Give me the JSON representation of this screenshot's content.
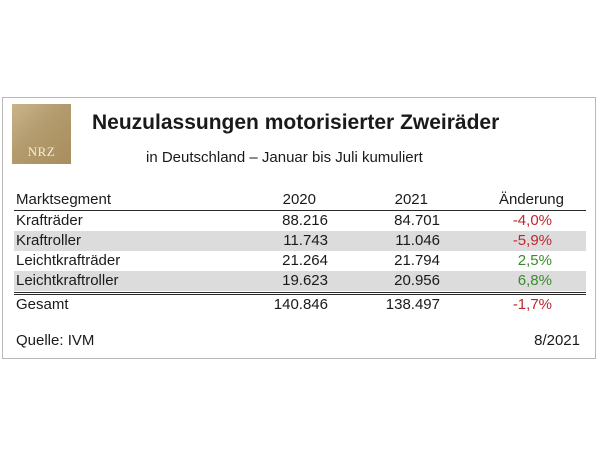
{
  "logo": {
    "text": "NRZ"
  },
  "title": "Neuzulassungen motorisierter Zweiräder",
  "subtitle": "in Deutschland – Januar bis Juli kumuliert",
  "table": {
    "headers": [
      "Marktsegment",
      "2020",
      "2021",
      "Änderung"
    ],
    "rows": [
      {
        "segment": "Krafträder",
        "y2020": "88.216",
        "y2021": "84.701",
        "change": "-4,0%",
        "trend": "negative"
      },
      {
        "segment": "Kraftroller",
        "y2020": "11.743",
        "y2021": "11.046",
        "change": "-5,9%",
        "trend": "negative"
      },
      {
        "segment": "Leichtkrafträder",
        "y2020": "21.264",
        "y2021": "21.794",
        "change": "2,5%",
        "trend": "positive"
      },
      {
        "segment": "Leichtkraftroller",
        "y2020": "19.623",
        "y2021": "20.956",
        "change": "6,8%",
        "trend": "positive"
      }
    ],
    "total": {
      "segment": "Gesamt",
      "y2020": "140.846",
      "y2021": "138.497",
      "change": "-1,7%",
      "trend": "negative"
    }
  },
  "footer": {
    "source": "Quelle: IVM",
    "date": "8/2021"
  },
  "colors": {
    "negative": "#c0272d",
    "positive": "#3c8a2e",
    "row_shade": "#dcdcdc",
    "logo_gold": "#b39b6d"
  }
}
